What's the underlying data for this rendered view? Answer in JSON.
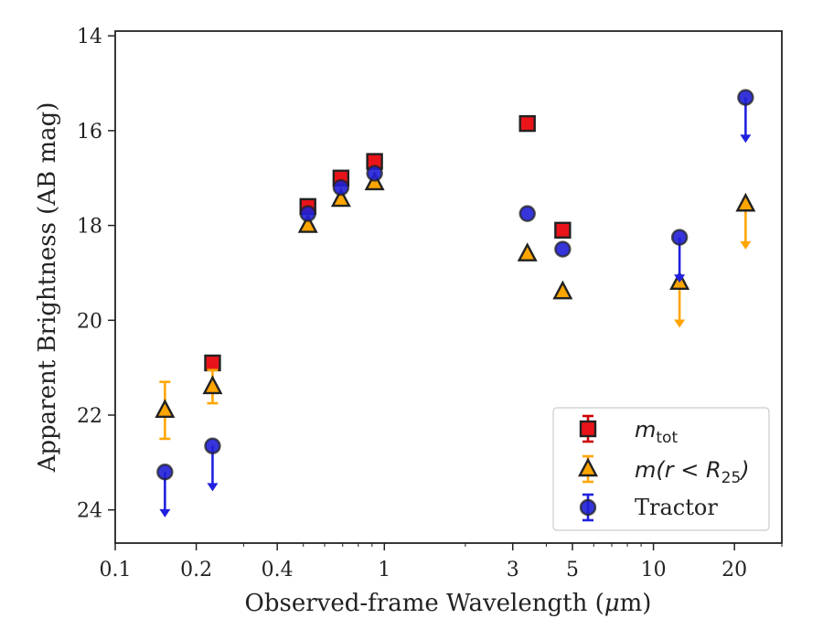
{
  "chart_data": {
    "type": "scatter",
    "xlabel_prefix": "Observed-frame Wavelength (",
    "xlabel_unit_mu": "μ",
    "xlabel_suffix": "m)",
    "ylabel": "Apparent Brightness (AB mag)",
    "x_scale": "log",
    "xlim": [
      0.1,
      30
    ],
    "ylim": [
      24.7,
      13.9
    ],
    "y_inverted": true,
    "x_ticks": [
      0.1,
      0.2,
      0.4,
      1,
      3,
      5,
      10,
      20
    ],
    "x_tick_labels": [
      "0.1",
      "0.2",
      "0.4",
      "1",
      "3",
      "5",
      "10",
      "20"
    ],
    "y_ticks": [
      14,
      16,
      18,
      20,
      22,
      24
    ],
    "y_tick_labels": [
      "14",
      "16",
      "18",
      "20",
      "22",
      "24"
    ],
    "grid": false,
    "legend_position": "lower-right",
    "series": [
      {
        "name_main": "m",
        "name_sub": "tot",
        "marker": "square",
        "color": "#e8141a",
        "errcolor": "#cc0000",
        "points": [
          {
            "x": 0.23,
            "y": 20.9
          },
          {
            "x": 0.52,
            "y": 17.6
          },
          {
            "x": 0.69,
            "y": 17.0
          },
          {
            "x": 0.92,
            "y": 16.65
          },
          {
            "x": 3.4,
            "y": 15.85
          },
          {
            "x": 4.6,
            "y": 18.1
          }
        ]
      },
      {
        "name_main": "m(r < R",
        "name_sub": "25",
        "name_tail": ")",
        "marker": "triangle",
        "color": "#ffa500",
        "errcolor": "#ffa500",
        "points": [
          {
            "x": 0.153,
            "y": 21.9,
            "yerr": [
              21.3,
              22.5
            ]
          },
          {
            "x": 0.23,
            "y": 21.4,
            "yerr": [
              21.05,
              21.75
            ]
          },
          {
            "x": 0.52,
            "y": 18.0
          },
          {
            "x": 0.69,
            "y": 17.45
          },
          {
            "x": 0.92,
            "y": 17.1
          },
          {
            "x": 3.4,
            "y": 18.6
          },
          {
            "x": 4.6,
            "y": 19.4
          },
          {
            "x": 12.5,
            "y": 19.2,
            "limit_to": 20.1
          },
          {
            "x": 22.0,
            "y": 17.55,
            "limit_to": 18.45
          }
        ]
      },
      {
        "name": "Tractor",
        "marker": "circle",
        "color": "#1f1fd6",
        "errcolor": "#2020e0",
        "points": [
          {
            "x": 0.153,
            "y": 23.2,
            "limit_to": 24.1
          },
          {
            "x": 0.23,
            "y": 22.65,
            "limit_to": 23.55
          },
          {
            "x": 0.52,
            "y": 17.75
          },
          {
            "x": 0.69,
            "y": 17.2
          },
          {
            "x": 0.92,
            "y": 16.9
          },
          {
            "x": 3.4,
            "y": 17.75
          },
          {
            "x": 4.6,
            "y": 18.5
          },
          {
            "x": 12.5,
            "y": 18.25,
            "limit_to": 19.15
          },
          {
            "x": 22.0,
            "y": 15.3,
            "limit_to": 16.2
          }
        ]
      }
    ]
  }
}
